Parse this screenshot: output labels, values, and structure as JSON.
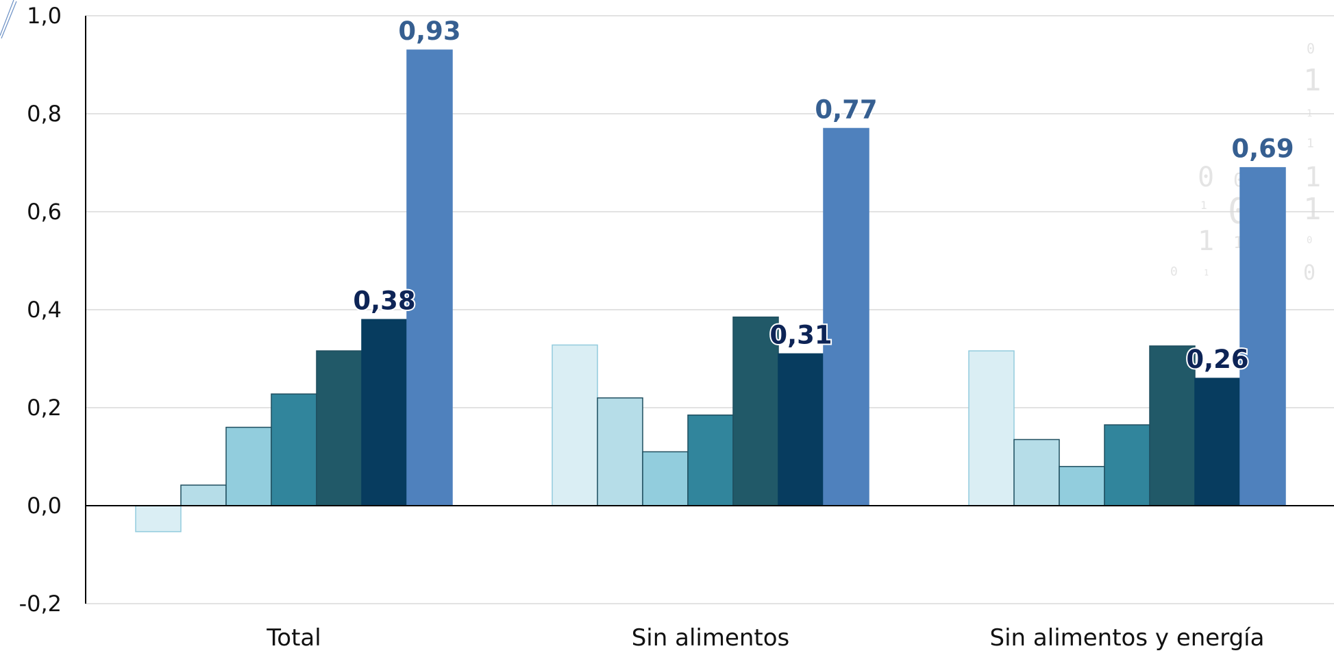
{
  "chart_data": {
    "type": "bar",
    "title": "",
    "xlabel": "",
    "ylabel": "",
    "ylim": [
      -0.2,
      1.0
    ],
    "yticks": [
      1.0,
      0.8,
      0.6,
      0.4,
      0.2,
      0.0,
      -0.2
    ],
    "ytick_labels": [
      "1,0",
      "0,8",
      "0,6",
      "0,4",
      "0,2",
      "0,0",
      "-0,2"
    ],
    "grid": true,
    "legend": "none",
    "categories": [
      "Total",
      "Sin alimentos",
      "Sin alimentos y energía"
    ],
    "series": [
      {
        "color": "#daeef4",
        "stroke": "#92cbdd",
        "values": [
          -0.053,
          0.328,
          0.316
        ]
      },
      {
        "color": "#b6dde8",
        "stroke": "#1f4e5f",
        "values": [
          0.042,
          0.22,
          0.135
        ]
      },
      {
        "color": "#92cddd",
        "stroke": "#1f4e5f",
        "values": [
          0.16,
          0.11,
          0.08
        ]
      },
      {
        "color": "#31859c",
        "stroke": "#1f4e5f",
        "values": [
          0.228,
          0.185,
          0.165
        ]
      },
      {
        "color": "#215968",
        "stroke": "#1f4e5f",
        "values": [
          0.316,
          0.385,
          0.326
        ]
      },
      {
        "color": "#073c5f",
        "stroke": "#073c5f",
        "values": [
          0.38,
          0.31,
          0.26
        ],
        "labels": [
          "0,38",
          "0,31",
          "0,26"
        ],
        "label_color": "#0d2456"
      },
      {
        "color": "#4f81bd",
        "stroke": "#4f81bd",
        "values": [
          0.93,
          0.77,
          0.69
        ],
        "labels": [
          "0,93",
          "0,77",
          "0,69"
        ],
        "label_color": "#365f91"
      }
    ]
  }
}
